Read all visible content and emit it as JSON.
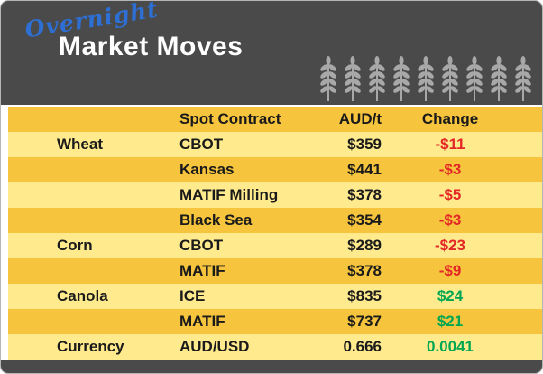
{
  "header": {
    "overnight_label": "Overnight",
    "title": "Market Moves"
  },
  "chart_data": {
    "type": "table",
    "title": "Overnight Market Moves",
    "columns": [
      "Spot Contract",
      "AUD/t",
      "Change"
    ],
    "rows": [
      {
        "category": "Wheat",
        "contract": "CBOT",
        "price": "$359",
        "change": "-$11",
        "direction": "down"
      },
      {
        "category": "",
        "contract": "Kansas",
        "price": "$441",
        "change": "-$3",
        "direction": "down"
      },
      {
        "category": "",
        "contract": "MATIF Milling",
        "price": "$378",
        "change": "-$5",
        "direction": "down"
      },
      {
        "category": "",
        "contract": "Black Sea",
        "price": "$354",
        "change": "-$3",
        "direction": "down"
      },
      {
        "category": "Corn",
        "contract": "CBOT",
        "price": "$289",
        "change": "-$23",
        "direction": "down"
      },
      {
        "category": "",
        "contract": "MATIF",
        "price": "$378",
        "change": "-$9",
        "direction": "down"
      },
      {
        "category": "Canola",
        "contract": "ICE",
        "price": "$835",
        "change": "$24",
        "direction": "up"
      },
      {
        "category": "",
        "contract": "MATIF",
        "price": "$737",
        "change": "$21",
        "direction": "up"
      },
      {
        "category": "Currency",
        "contract": "AUD/USD",
        "price": "0.666",
        "change": "0.0041",
        "direction": "up"
      }
    ]
  },
  "colors": {
    "header_bg": "#4a4a4a",
    "row_gold": "#f7c53d",
    "row_light": "#ffeb8e",
    "negative": "#e32726",
    "positive": "#00a651",
    "overnight_blue": "#2d6fd2",
    "wheat_gray": "#a8a8a8"
  }
}
